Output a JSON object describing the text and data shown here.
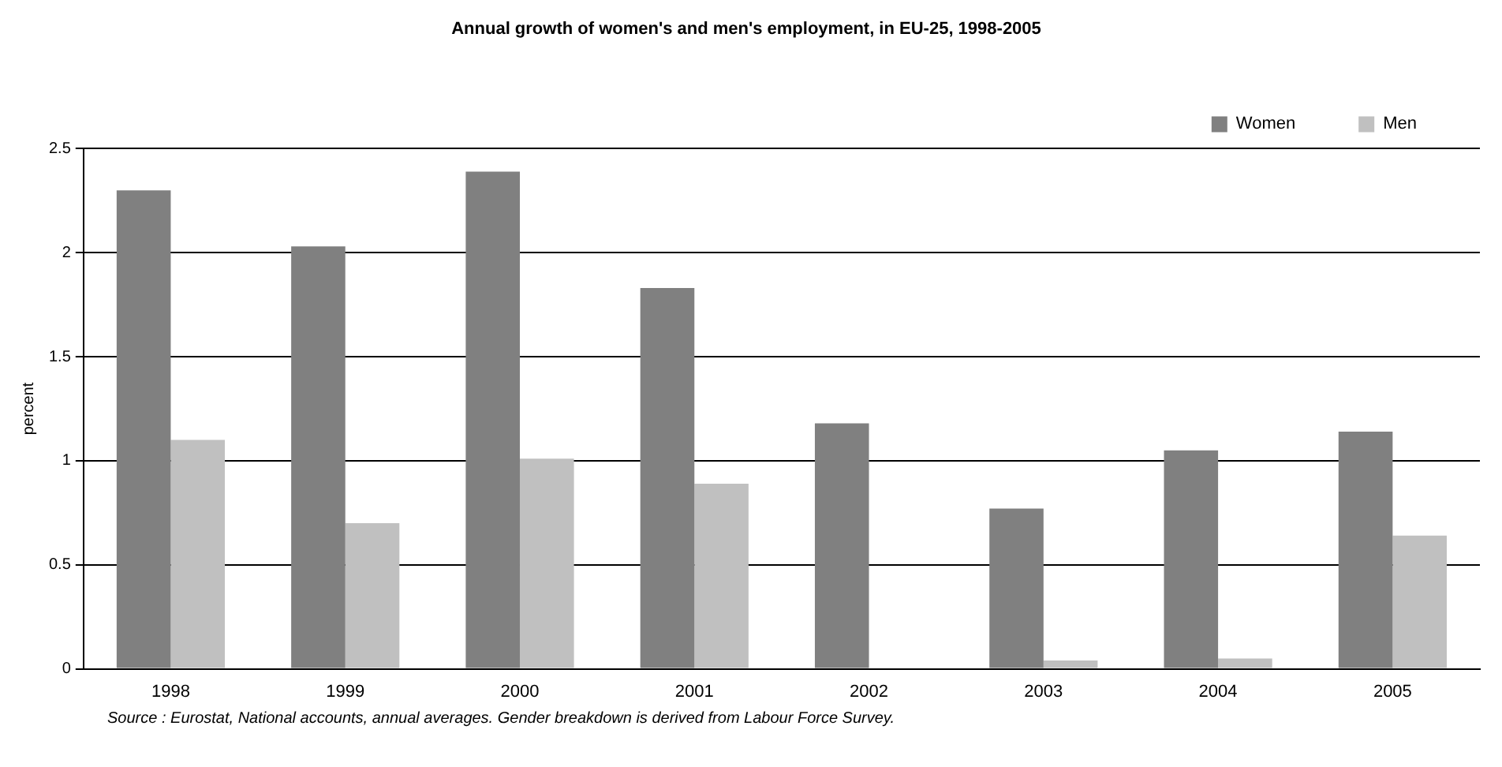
{
  "chart_data": {
    "type": "bar",
    "title": "Annual growth of women's and men's employment, in EU-25, 1998-2005",
    "ylabel": "percent",
    "categories": [
      "1998",
      "1999",
      "2000",
      "2001",
      "2002",
      "2003",
      "2004",
      "2005"
    ],
    "series": [
      {
        "name": "Women",
        "color": "#808080",
        "values": [
          2.3,
          2.03,
          2.39,
          1.83,
          1.18,
          0.77,
          1.05,
          1.14
        ]
      },
      {
        "name": "Men",
        "color": "#c0c0c0",
        "values": [
          1.1,
          0.7,
          1.01,
          0.89,
          0,
          0.04,
          0.05,
          0.64
        ]
      }
    ],
    "ylim": [
      0,
      2.5
    ],
    "yticks": [
      0,
      0.5,
      1,
      1.5,
      2,
      2.5
    ],
    "grid": "y",
    "legend": "top right",
    "annotations": [
      "Source : Eurostat, National accounts, annual averages. Gender breakdown is derived from Labour Force Survey."
    ]
  }
}
